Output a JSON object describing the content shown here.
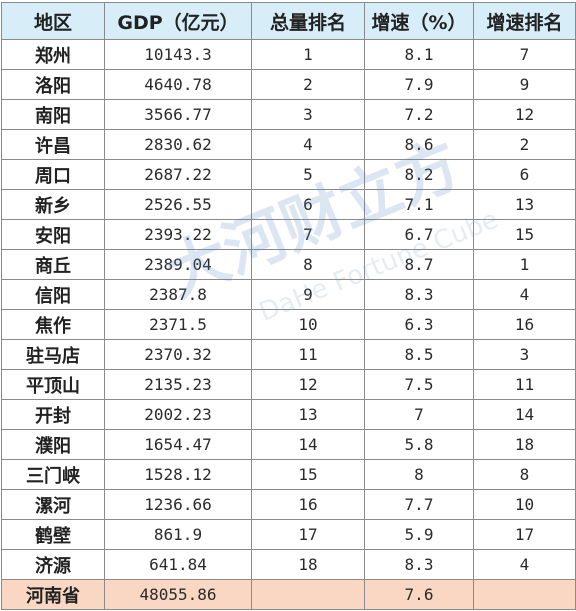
{
  "table": {
    "headers": [
      "地区",
      "GDP（亿元）",
      "总量排名",
      "增速（%）",
      "增速排名"
    ],
    "rows": [
      [
        "郑州",
        "10143.3",
        "1",
        "8.1",
        "7"
      ],
      [
        "洛阳",
        "4640.78",
        "2",
        "7.9",
        "9"
      ],
      [
        "南阳",
        "3566.77",
        "3",
        "7.2",
        "12"
      ],
      [
        "许昌",
        "2830.62",
        "4",
        "8.6",
        "2"
      ],
      [
        "周口",
        "2687.22",
        "5",
        "8.2",
        "6"
      ],
      [
        "新乡",
        "2526.55",
        "6",
        "7.1",
        "13"
      ],
      [
        "安阳",
        "2393.22",
        "7",
        "6.7",
        "15"
      ],
      [
        "商丘",
        "2389.04",
        "8",
        "8.7",
        "1"
      ],
      [
        "信阳",
        "2387.8",
        "9",
        "8.3",
        "4"
      ],
      [
        "焦作",
        "2371.5",
        "10",
        "6.3",
        "16"
      ],
      [
        "驻马店",
        "2370.32",
        "11",
        "8.5",
        "3"
      ],
      [
        "平顶山",
        "2135.23",
        "12",
        "7.5",
        "11"
      ],
      [
        "开封",
        "2002.23",
        "13",
        "7",
        "14"
      ],
      [
        "濮阳",
        "1654.47",
        "14",
        "5.8",
        "18"
      ],
      [
        "三门峡",
        "1528.12",
        "15",
        "8",
        "8"
      ],
      [
        "漯河",
        "1236.66",
        "16",
        "7.7",
        "10"
      ],
      [
        "鹤壁",
        "861.9",
        "17",
        "5.9",
        "17"
      ],
      [
        "济源",
        "641.84",
        "18",
        "8.3",
        "4"
      ]
    ],
    "total": [
      "河南省",
      "48055.86",
      "",
      "7.6",
      ""
    ]
  },
  "watermark": {
    "brand": "大河财立方",
    "english": "DaHe Fortune Cube"
  },
  "colors": {
    "header_bg": "#d7eef9",
    "total_bg": "#f9d7c2",
    "border": "#8a8a8a"
  }
}
